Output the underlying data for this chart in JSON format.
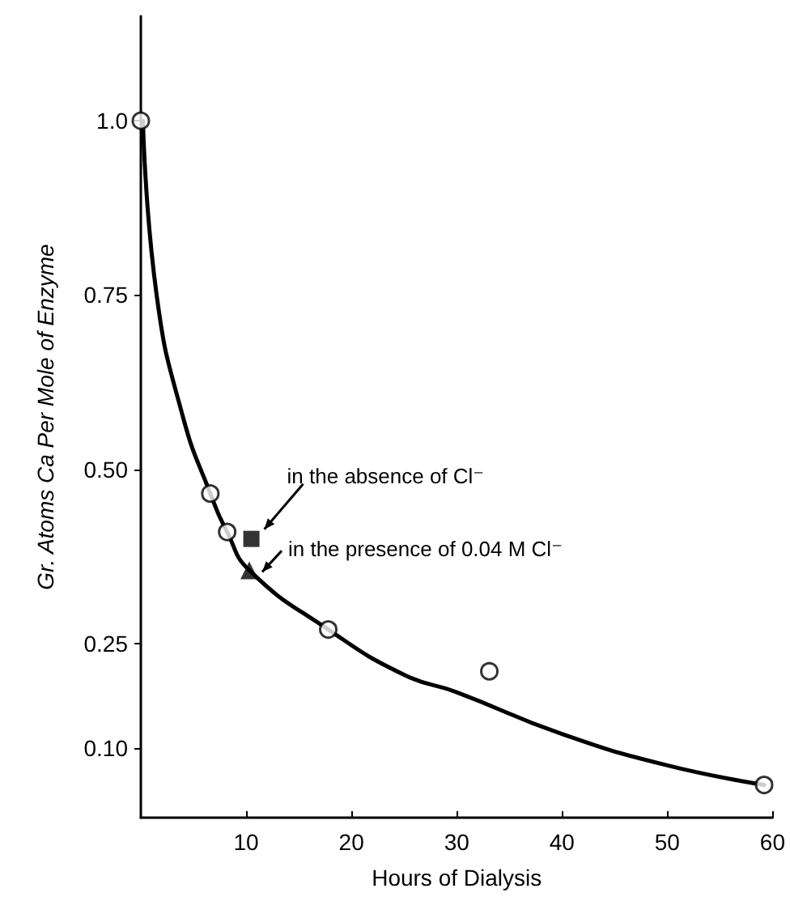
{
  "chart_data": {
    "type": "scatter",
    "xlabel": "Hours of Dialysis",
    "ylabel": "Gr. Atoms Ca Per Mole of Enzyme",
    "xlim": [
      0,
      60
    ],
    "xticks": [
      10,
      20,
      30,
      40,
      50,
      60
    ],
    "ylim": [
      0,
      1.15
    ],
    "yticks": [
      {
        "value": 0.1,
        "label": "0.10"
      },
      0.25,
      {
        "value": 0.5,
        "label": "0.50"
      },
      0.75,
      {
        "value": 1,
        "label": "1.0"
      }
    ],
    "grid": false,
    "series": [
      {
        "type": "line",
        "color": "#000000",
        "marker": "none",
        "x": [
          0.2,
          1.5,
          4,
          6.6,
          8.2,
          10.3,
          17.8,
          25,
          30,
          40,
          50,
          59.2
        ],
        "values": [
          1.0,
          0.75,
          0.575,
          0.465,
          0.41,
          0.355,
          0.27,
          0.205,
          0.18,
          0.12,
          0.075,
          0.047
        ]
      },
      {
        "color": "#000000",
        "marker": "circle",
        "x": [
          0,
          6.6,
          8.2,
          17.8,
          33.1,
          59.2
        ],
        "values": [
          1.0,
          0.465,
          0.41,
          0.27,
          0.21,
          0.047
        ]
      },
      {
        "color": "#000000",
        "marker": "square",
        "x": [
          10.5
        ],
        "values": [
          0.4
        ]
      },
      {
        "color": "#000000",
        "marker": "triangle",
        "x": [
          10.3
        ],
        "values": [
          0.355
        ]
      }
    ],
    "annotations": [
      {
        "text": "in the absence of Cl⁻",
        "x": 10.5,
        "y": 0.4
      },
      {
        "text": "in the presence of 0.04 M Cl⁻",
        "x": 10.3,
        "y": 0.355
      }
    ]
  }
}
